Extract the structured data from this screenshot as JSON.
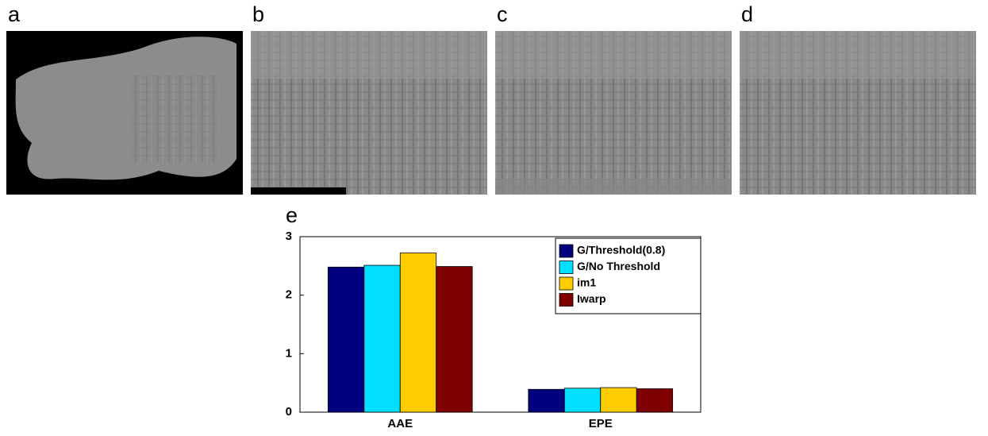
{
  "panels": [
    {
      "label": "a"
    },
    {
      "label": "b"
    },
    {
      "label": "c"
    },
    {
      "label": "d"
    }
  ],
  "chart_data": {
    "type": "bar",
    "label": "e",
    "categories": [
      "AAE",
      "EPE"
    ],
    "series": [
      {
        "name": "G/Threshold(0.8)",
        "color": "#000080",
        "values": [
          2.48,
          0.39
        ]
      },
      {
        "name": "G/No Threshold",
        "color": "#00dfff",
        "values": [
          2.51,
          0.41
        ]
      },
      {
        "name": "im1",
        "color": "#ffcc00",
        "values": [
          2.72,
          0.42
        ]
      },
      {
        "name": "Iwarp",
        "color": "#800000",
        "values": [
          2.49,
          0.4
        ]
      }
    ],
    "ylim": [
      0,
      3
    ],
    "yticks": [
      0,
      1,
      2,
      3
    ],
    "grid": false,
    "legend": "upper right"
  }
}
